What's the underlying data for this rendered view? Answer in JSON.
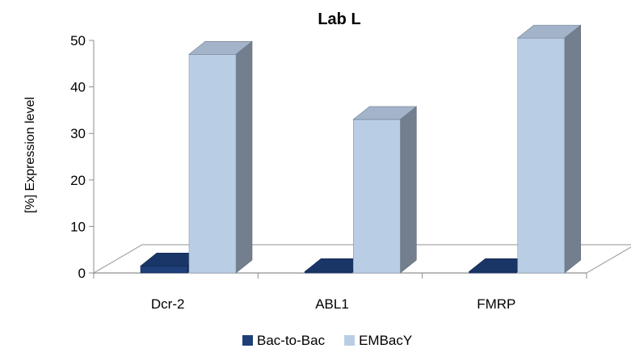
{
  "chart_data": {
    "type": "bar",
    "title": "Lab L",
    "ylabel": "[%] Expression level",
    "xlabel": "",
    "ylim": [
      0,
      50
    ],
    "yticks": [
      0,
      10,
      20,
      30,
      40,
      50
    ],
    "categories": [
      "Dcr-2",
      "ABL1",
      "FMRP"
    ],
    "series": [
      {
        "name": "Bac-to-Bac",
        "values": [
          1.5,
          0.3,
          0.3
        ],
        "color": "#1f3f7a"
      },
      {
        "name": "EMBacY",
        "values": [
          47,
          33,
          50.5
        ],
        "color": "#b9cde5"
      }
    ],
    "grid": false,
    "legend_position": "bottom",
    "style": "3d-column"
  }
}
